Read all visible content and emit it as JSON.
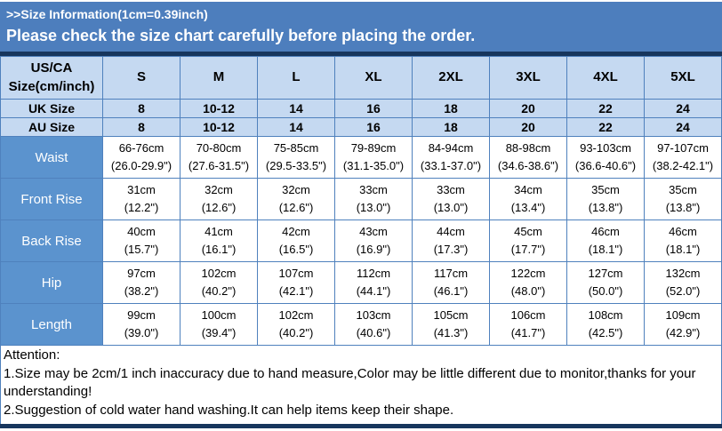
{
  "header": {
    "title": ">>Size Information(1cm=0.39inch)",
    "subtitle": "Please check the size chart carefully before placing the order."
  },
  "table": {
    "corner_label": "US/CA\nSize(cm/inch)",
    "size_columns": [
      "S",
      "M",
      "L",
      "XL",
      "2XL",
      "3XL",
      "4XL",
      "5XL"
    ],
    "size_rows": [
      {
        "label": "UK Size",
        "values": [
          "8",
          "10-12",
          "14",
          "16",
          "18",
          "20",
          "22",
          "24"
        ]
      },
      {
        "label": "AU Size",
        "values": [
          "8",
          "10-12",
          "14",
          "16",
          "18",
          "20",
          "22",
          "24"
        ]
      }
    ],
    "measurement_rows": [
      {
        "label": "Waist",
        "values": [
          "66-76cm\n(26.0-29.9\")",
          "70-80cm\n(27.6-31.5\")",
          "75-85cm\n(29.5-33.5\")",
          "79-89cm\n(31.1-35.0\")",
          "84-94cm\n(33.1-37.0\")",
          "88-98cm\n(34.6-38.6\")",
          "93-103cm\n(36.6-40.6\")",
          "97-107cm\n(38.2-42.1\")"
        ]
      },
      {
        "label": "Front Rise",
        "values": [
          "31cm\n(12.2\")",
          "32cm\n(12.6\")",
          "32cm\n(12.6\")",
          "33cm\n(13.0\")",
          "33cm\n(13.0\")",
          "34cm\n(13.4\")",
          "35cm\n(13.8\")",
          "35cm\n(13.8\")"
        ]
      },
      {
        "label": "Back Rise",
        "values": [
          "40cm\n(15.7\")",
          "41cm\n(16.1\")",
          "42cm\n(16.5\")",
          "43cm\n(16.9\")",
          "44cm\n(17.3\")",
          "45cm\n(17.7\")",
          "46cm\n(18.1\")",
          "46cm\n(18.1\")"
        ]
      },
      {
        "label": "Hip",
        "values": [
          "97cm\n(38.2\")",
          "102cm\n(40.2\")",
          "107cm\n(42.1\")",
          "112cm\n(44.1\")",
          "117cm\n(46.1\")",
          "122cm\n(48.0\")",
          "127cm\n(50.0\")",
          "132cm\n(52.0\")"
        ]
      },
      {
        "label": "Length",
        "values": [
          "99cm\n(39.0\")",
          "100cm\n(39.4\")",
          "102cm\n(40.2\")",
          "103cm\n(40.6\")",
          "105cm\n(41.3\")",
          "106cm\n(41.7\")",
          "108cm\n(42.5\")",
          "109cm\n(42.9\")"
        ]
      }
    ]
  },
  "attention": {
    "title": "Attention:",
    "notes": [
      "1.Size may be 2cm/1 inch inaccuracy due to hand measure,Color may be little different due to monitor,thanks for your understanding!",
      "2.Suggestion of cold water hand washing.It can help items keep their shape."
    ]
  },
  "colors": {
    "banner_blue": "#4d7ebd",
    "header_light_blue": "#c5d9f1",
    "label_blue": "#5b93ce",
    "navy": "#17365d",
    "border_blue": "#4f81bd"
  }
}
